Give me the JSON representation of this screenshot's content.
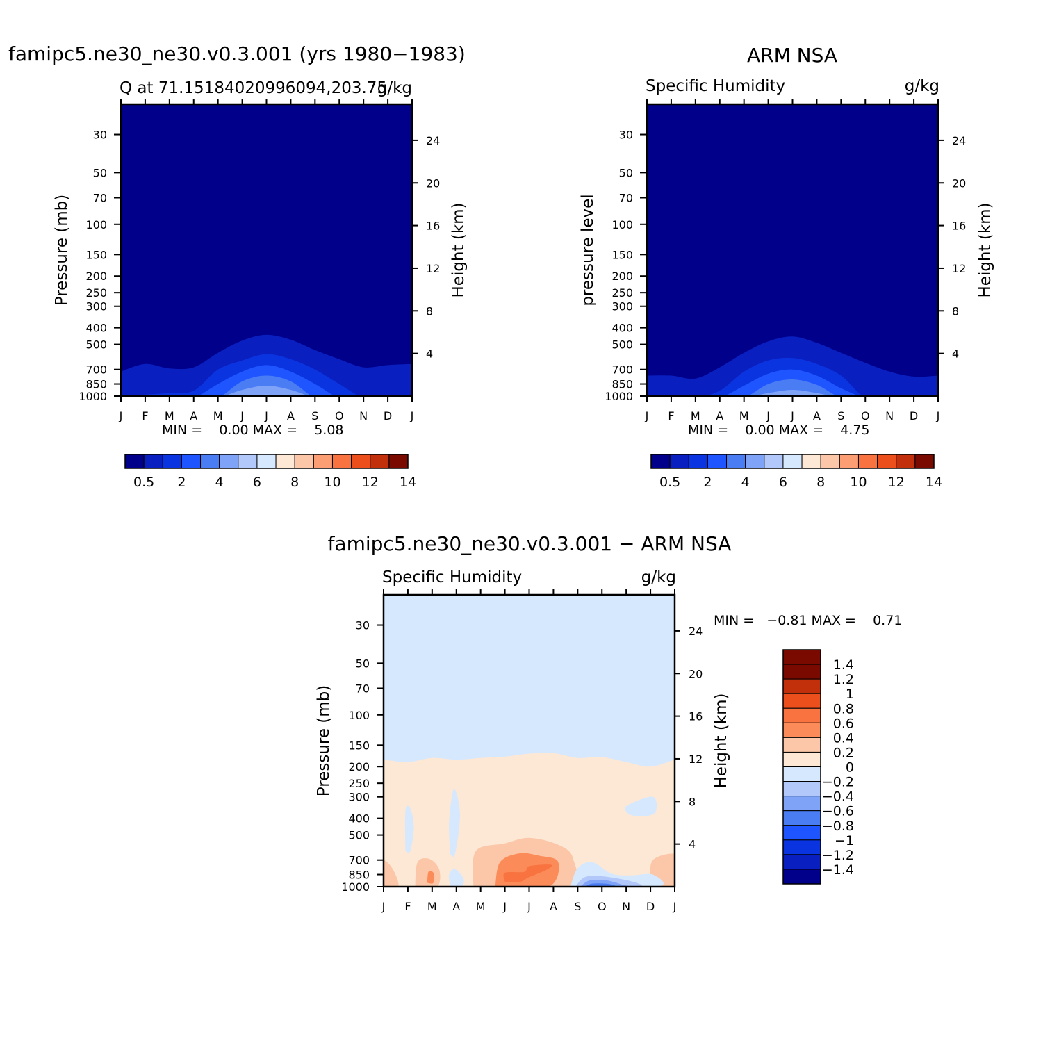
{
  "panels": [
    {
      "title": "famipc5.ne30_ne30.v0.3.001 (yrs 1980−1983)",
      "left_label": "Q at 71.15184020996094,203.75",
      "right_label": "g/kg",
      "ylabel_left": "Pressure (mb)",
      "ylabel_right": "Height (km)",
      "stats": "MIN =    0.00 MAX =    5.08",
      "colorbar_labels": [
        "0.5",
        "2",
        "4",
        "6",
        "8",
        "10",
        "12",
        "14"
      ]
    },
    {
      "title": "ARM NSA",
      "left_label": "Specific Humidity",
      "right_label": "g/kg",
      "ylabel_left": "pressure level",
      "ylabel_right": "Height (km)",
      "stats": "MIN =    0.00 MAX =    4.75",
      "colorbar_labels": [
        "0.5",
        "2",
        "4",
        "6",
        "8",
        "10",
        "12",
        "14"
      ]
    },
    {
      "title": "famipc5.ne30_ne30.v0.3.001 − ARM NSA",
      "left_label": "Specific Humidity",
      "right_label": "g/kg",
      "ylabel_left": "Pressure (mb)",
      "ylabel_right": "Height (km)",
      "stats": "MIN =   −0.81 MAX =    0.71",
      "colorbar_labels": [
        "1.4",
        "1.2",
        "1",
        "0.8",
        "0.6",
        "0.4",
        "0.2",
        "0",
        "−0.2",
        "−0.4",
        "−0.6",
        "−0.8",
        "−1",
        "−1.2",
        "−1.4"
      ]
    }
  ],
  "chart_data": [
    {
      "type": "heatmap",
      "title": "famipc5.ne30_ne30.v0.3.001 (yrs 1980−1983)",
      "subtitle_left": "Q at 71.15184020996094,203.75",
      "units": "g/kg",
      "xlabel": "",
      "ylabel": "Pressure (mb)",
      "ylabel_right": "Height (km)",
      "x_ticks": [
        "J",
        "F",
        "M",
        "A",
        "M",
        "J",
        "J",
        "A",
        "S",
        "O",
        "N",
        "D",
        "J"
      ],
      "y_ticks": [
        30,
        50,
        70,
        100,
        150,
        200,
        250,
        300,
        400,
        500,
        700,
        850,
        1000
      ],
      "y_ticks_right": [
        24,
        20,
        16,
        12,
        8,
        4
      ],
      "ylim": [
        1000,
        20
      ],
      "y_scale": "log",
      "min": 0.0,
      "max": 5.08,
      "contour_levels": [
        0.5,
        1,
        2,
        3,
        4,
        5,
        6,
        7,
        8,
        9,
        10,
        11,
        12,
        13,
        14
      ],
      "contours": [
        {
          "level": 0.5,
          "pressure_top": [
            720,
            650,
            690,
            680,
            560,
            475,
            440,
            470,
            540,
            610,
            680,
            660,
            650
          ]
        },
        {
          "level": 1,
          "pressure_top": [
            1000,
            980,
            960,
            930,
            700,
            620,
            570,
            610,
            700,
            850,
            1000,
            1000,
            1000
          ]
        },
        {
          "level": 2,
          "pressure_top": [
            1000,
            1000,
            1000,
            1000,
            850,
            720,
            660,
            720,
            850,
            1000,
            1000,
            1000,
            1000
          ]
        },
        {
          "level": 3,
          "pressure_top": [
            1000,
            1000,
            1000,
            1000,
            1000,
            820,
            760,
            820,
            1000,
            1000,
            1000,
            1000,
            1000
          ]
        },
        {
          "level": 4,
          "pressure_top": [
            1000,
            1000,
            1000,
            1000,
            1000,
            920,
            870,
            920,
            1000,
            1000,
            1000,
            1000,
            1000
          ]
        },
        {
          "level": 5,
          "pressure_top": [
            1000,
            1000,
            1000,
            1000,
            1000,
            1000,
            980,
            1000,
            1000,
            1000,
            1000,
            1000,
            1000
          ]
        }
      ],
      "colors": [
        "#00008b",
        "#0a1fbf",
        "#0a34e0",
        "#1e55ff",
        "#4a7cf4",
        "#7ea3f7",
        "#b2c8fa",
        "#d6e8fd",
        "#fde8d6",
        "#fcc7a8",
        "#fb9e74",
        "#f8733f",
        "#ec4f1c",
        "#c2300b",
        "#7a0a00"
      ]
    },
    {
      "type": "heatmap",
      "title": "ARM NSA",
      "subtitle_left": "Specific Humidity",
      "units": "g/kg",
      "xlabel": "",
      "ylabel": "pressure level",
      "ylabel_right": "Height (km)",
      "x_ticks": [
        "J",
        "F",
        "M",
        "A",
        "M",
        "J",
        "J",
        "A",
        "S",
        "O",
        "N",
        "D",
        "J"
      ],
      "y_ticks": [
        30,
        50,
        70,
        100,
        150,
        200,
        250,
        300,
        400,
        500,
        700,
        850,
        1000
      ],
      "y_ticks_right": [
        24,
        20,
        16,
        12,
        8,
        4
      ],
      "ylim": [
        1000,
        20
      ],
      "y_scale": "log",
      "min": 0.0,
      "max": 4.75,
      "contour_levels": [
        0.5,
        1,
        2,
        3,
        4,
        5,
        6,
        7,
        8,
        9,
        10,
        11,
        12,
        13,
        14
      ],
      "contours": [
        {
          "level": 0.5,
          "pressure_top": [
            760,
            760,
            790,
            680,
            560,
            480,
            450,
            490,
            560,
            640,
            720,
            770,
            760
          ]
        },
        {
          "level": 1,
          "pressure_top": [
            1000,
            1000,
            1000,
            930,
            720,
            620,
            600,
            650,
            760,
            1000,
            1000,
            1000,
            1000
          ]
        },
        {
          "level": 2,
          "pressure_top": [
            1000,
            1000,
            1000,
            1000,
            870,
            740,
            700,
            760,
            900,
            1000,
            1000,
            1000,
            1000
          ]
        },
        {
          "level": 3,
          "pressure_top": [
            1000,
            1000,
            1000,
            1000,
            1000,
            850,
            800,
            860,
            1000,
            1000,
            1000,
            1000,
            1000
          ]
        },
        {
          "level": 4,
          "pressure_top": [
            1000,
            1000,
            1000,
            1000,
            1000,
            960,
            920,
            960,
            1000,
            1000,
            1000,
            1000,
            1000
          ]
        }
      ],
      "colors": [
        "#00008b",
        "#0a1fbf",
        "#0a34e0",
        "#1e55ff",
        "#4a7cf4",
        "#7ea3f7",
        "#b2c8fa",
        "#d6e8fd",
        "#fde8d6",
        "#fcc7a8",
        "#fb9e74",
        "#f8733f",
        "#ec4f1c",
        "#c2300b",
        "#7a0a00"
      ]
    },
    {
      "type": "heatmap",
      "title": "famipc5.ne30_ne30.v0.3.001 − ARM NSA",
      "subtitle_left": "Specific Humidity",
      "units": "g/kg",
      "xlabel": "",
      "ylabel": "Pressure (mb)",
      "ylabel_right": "Height (km)",
      "x_ticks": [
        "J",
        "F",
        "M",
        "A",
        "M",
        "J",
        "J",
        "A",
        "S",
        "O",
        "N",
        "D",
        "J"
      ],
      "y_ticks": [
        30,
        50,
        70,
        100,
        150,
        200,
        250,
        300,
        400,
        500,
        700,
        850,
        1000
      ],
      "y_ticks_right": [
        24,
        20,
        16,
        12,
        8,
        4
      ],
      "ylim": [
        1000,
        20
      ],
      "y_scale": "log",
      "min": -0.81,
      "max": 0.71,
      "contour_levels": [
        -1.4,
        -1.2,
        -1,
        -0.8,
        -0.6,
        -0.4,
        -0.2,
        0,
        0.2,
        0.4,
        0.6,
        0.8,
        1,
        1.2,
        1.4
      ],
      "regions": {
        "background_value_range": [
          -0.2,
          0
        ],
        "positive_layer_top_pressure": [
          182,
          188,
          178,
          182,
          178,
          175,
          168,
          167,
          178,
          176,
          188,
          200,
          182
        ],
        "warm_pockets_0.2_to_0.4": "low levels near Jan, Feb–Mar, May–Sep, Dec (700–1000 mb)",
        "warm_pocket_0.4_to_0.6": "Jun–Aug around 700–900 mb",
        "negative_pockets": "Feb near 350–600 mb, Apr near 280–650 mb, Apr near 800–1000 mb, Nov near 320–380 mb, Sep–Oct near 850–1000 mb reaching −0.8"
      },
      "colors": [
        "#7a0a00",
        "#c2300b",
        "#ec4f1c",
        "#f8733f",
        "#fb8b58",
        "#fcc7a8",
        "#fde8d6",
        "#d6e8fd",
        "#b2c8fa",
        "#7ea3f7",
        "#4a7cf4",
        "#1e55ff",
        "#0a34e0",
        "#0a1fbf",
        "#00008b"
      ]
    }
  ]
}
